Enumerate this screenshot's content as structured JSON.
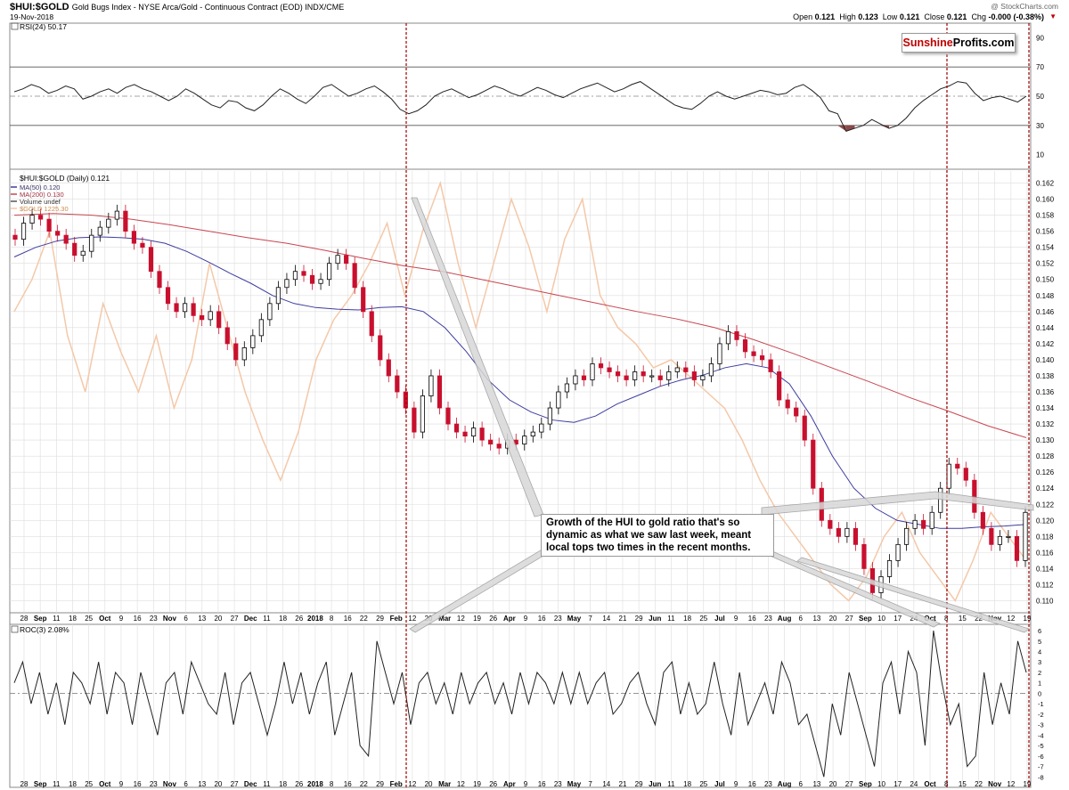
{
  "header": {
    "symbol": "$HUI:$GOLD",
    "description": "Gold Bugs Index - NYSE Arca/Gold - Continuous Contract (EOD) INDX/CME",
    "date": "19-Nov-2018",
    "source": "@ StockCharts.com",
    "quote": {
      "open_label": "Open",
      "open": "0.121",
      "high_label": "High",
      "high": "0.123",
      "low_label": "Low",
      "low": "0.121",
      "close_label": "Close",
      "close": "0.121",
      "chg_label": "Chg",
      "chg": "-0.000 (-0.38%)"
    }
  },
  "logo": {
    "part1": "Sunshine",
    "part2": "Profits.com"
  },
  "annotation": {
    "text": "Growth of the HUI to gold ratio that's so dynamic as what we saw last week, meant local tops two times in the recent months."
  },
  "colors": {
    "up": "#000000",
    "down": "#c8102e",
    "ma50": "#3c3ca0",
    "ma200": "#c84650",
    "gold": "#f4c8a8",
    "grid": "#dddddd",
    "marker": "#a00000",
    "rsi_fill": "#8b4a4a"
  },
  "chart_data": [
    {
      "type": "line",
      "panel": "RSI",
      "title": "RSI(24) 50.17",
      "yticks": [
        10,
        30,
        50,
        70,
        90
      ],
      "ylim": [
        0,
        100
      ],
      "ref_lines": [
        30,
        50,
        70
      ],
      "points": [
        53,
        55,
        58,
        56,
        52,
        54,
        57,
        55,
        48,
        50,
        53,
        55,
        52,
        56,
        58,
        55,
        53,
        50,
        47,
        50,
        55,
        52,
        48,
        44,
        42,
        47,
        46,
        42,
        40,
        44,
        50,
        55,
        52,
        48,
        45,
        50,
        56,
        58,
        54,
        50,
        52,
        55,
        57,
        53,
        48,
        41,
        38,
        40,
        44,
        50,
        53,
        55,
        52,
        49,
        51,
        54,
        57,
        55,
        52,
        50,
        53,
        56,
        54,
        51,
        49,
        52,
        55,
        57,
        59,
        56,
        53,
        55,
        58,
        60,
        56,
        52,
        48,
        44,
        42,
        41,
        45,
        50,
        53,
        50,
        48,
        50,
        52,
        54,
        53,
        51,
        52,
        56,
        58,
        54,
        49,
        40,
        38,
        26,
        28,
        30,
        34,
        31,
        28,
        30,
        35,
        42,
        47,
        51,
        55,
        57,
        60,
        59,
        52,
        47,
        49,
        50,
        48,
        46,
        50
      ]
    },
    {
      "type": "candlestick",
      "panel": "Price",
      "title": "$HUI:$GOLD (Daily) 0.121",
      "legend": [
        "MA(50) 0.120",
        "MA(200) 0.130",
        "Volume undef",
        "$GOLD 1225.30"
      ],
      "yticks": [
        0.11,
        0.112,
        0.114,
        0.116,
        0.118,
        0.12,
        0.122,
        0.124,
        0.126,
        0.128,
        0.13,
        0.132,
        0.134,
        0.136,
        0.138,
        0.14,
        0.142,
        0.144,
        0.146,
        0.148,
        0.15,
        0.152,
        0.154,
        0.156,
        0.158,
        0.16,
        0.162
      ],
      "ylim": [
        0.1085,
        0.1635
      ],
      "close": [
        0.155,
        0.157,
        0.158,
        0.1575,
        0.156,
        0.1555,
        0.1545,
        0.153,
        0.1535,
        0.1555,
        0.1565,
        0.1575,
        0.1585,
        0.156,
        0.1545,
        0.154,
        0.151,
        0.149,
        0.147,
        0.146,
        0.147,
        0.1455,
        0.145,
        0.146,
        0.144,
        0.142,
        0.14,
        0.1415,
        0.143,
        0.145,
        0.147,
        0.149,
        0.15,
        0.151,
        0.1505,
        0.1495,
        0.15,
        0.152,
        0.153,
        0.152,
        0.149,
        0.146,
        0.143,
        0.14,
        0.138,
        0.136,
        0.134,
        0.131,
        0.1355,
        0.138,
        0.134,
        0.132,
        0.131,
        0.1305,
        0.1315,
        0.13,
        0.1295,
        0.129,
        0.13,
        0.1295,
        0.1305,
        0.131,
        0.132,
        0.134,
        0.136,
        0.137,
        0.138,
        0.1375,
        0.1395,
        0.139,
        0.1385,
        0.138,
        0.1375,
        0.1385,
        0.138,
        0.138,
        0.1375,
        0.1385,
        0.139,
        0.1385,
        0.1375,
        0.138,
        0.1395,
        0.142,
        0.1435,
        0.1425,
        0.141,
        0.1405,
        0.14,
        0.1385,
        0.135,
        0.134,
        0.133,
        0.13,
        0.124,
        0.12,
        0.119,
        0.118,
        0.119,
        0.117,
        0.114,
        0.111,
        0.113,
        0.115,
        0.117,
        0.119,
        0.12,
        0.119,
        0.121,
        0.124,
        0.127,
        0.1265,
        0.125,
        0.121,
        0.119,
        0.117,
        0.118,
        0.118,
        0.115,
        0.121
      ]
    },
    {
      "type": "line",
      "panel": "Price overlay",
      "name": "MA(50)",
      "points": [
        0.1528,
        0.154,
        0.1548,
        0.1552,
        0.1553,
        0.1552,
        0.155,
        0.1545,
        0.1535,
        0.1522,
        0.1508,
        0.1495,
        0.148,
        0.147,
        0.1465,
        0.1463,
        0.1462,
        0.1465,
        0.1466,
        0.146,
        0.144,
        0.141,
        0.1375,
        0.135,
        0.1335,
        0.1325,
        0.1322,
        0.133,
        0.1345,
        0.1356,
        0.1367,
        0.1375,
        0.1381,
        0.139,
        0.1395,
        0.139,
        0.137,
        0.133,
        0.128,
        0.124,
        0.1215,
        0.12,
        0.1195,
        0.119,
        0.119,
        0.1192,
        0.1193,
        0.1195
      ]
    },
    {
      "type": "line",
      "panel": "Price overlay",
      "name": "MA(200)",
      "points": [
        0.158,
        0.1582,
        0.158,
        0.1575,
        0.1568,
        0.156,
        0.1552,
        0.1545,
        0.1536,
        0.1526,
        0.1517,
        0.151,
        0.15,
        0.149,
        0.148,
        0.147,
        0.146,
        0.1451,
        0.144,
        0.1425,
        0.1408,
        0.139,
        0.1372,
        0.1353,
        0.1336,
        0.1318,
        0.1303
      ]
    },
    {
      "type": "line",
      "panel": "Price overlay",
      "name": "$GOLD",
      "note": "overlay on independent scale",
      "points": [
        0.146,
        0.15,
        0.156,
        0.143,
        0.136,
        0.147,
        0.141,
        0.136,
        0.143,
        0.134,
        0.14,
        0.152,
        0.144,
        0.136,
        0.13,
        0.125,
        0.131,
        0.14,
        0.145,
        0.148,
        0.152,
        0.157,
        0.148,
        0.156,
        0.162,
        0.152,
        0.144,
        0.152,
        0.16,
        0.154,
        0.146,
        0.155,
        0.16,
        0.148,
        0.144,
        0.142,
        0.139,
        0.14,
        0.138,
        0.136,
        0.134,
        0.13,
        0.125,
        0.121,
        0.118,
        0.115,
        0.112,
        0.11,
        0.113,
        0.118,
        0.121,
        0.116,
        0.113,
        0.11,
        0.115,
        0.121,
        0.118,
        0.115
      ]
    },
    {
      "type": "line",
      "panel": "ROC",
      "title": "ROC(3) 2.08%",
      "yticks": [
        6,
        5,
        4,
        3,
        2,
        1,
        0,
        -1,
        -2,
        -3,
        -4,
        -5,
        -6,
        -7,
        -8
      ],
      "ylim": [
        -9,
        6.6
      ],
      "ref_lines": [
        0
      ],
      "points": [
        1,
        3,
        -1,
        2,
        -2,
        1,
        -3,
        2,
        1,
        -1,
        3,
        -2,
        2,
        1,
        -3,
        2,
        -1,
        -4,
        1,
        2,
        -2,
        3,
        1,
        -1,
        -2,
        2,
        -3,
        1,
        2,
        -1,
        -4,
        -1,
        3,
        -1,
        2,
        -2,
        1,
        3,
        -4,
        -1,
        2,
        -5,
        -6,
        5,
        2,
        -1,
        2,
        -3,
        1,
        2,
        -1,
        1,
        -2,
        2,
        -1,
        1,
        2,
        -1,
        1,
        -2,
        2,
        -1,
        2,
        1,
        -1,
        2,
        -1,
        2,
        -1,
        1,
        2,
        -2,
        -1,
        1,
        2,
        -1,
        -3,
        2,
        3,
        -2,
        1,
        -2,
        -1,
        3,
        -1,
        -4,
        2,
        -3,
        -1,
        1,
        -2,
        3,
        1,
        -3,
        -2,
        -5,
        -8,
        -1,
        -4,
        2,
        -1,
        -4,
        -7,
        1,
        3,
        -2,
        4,
        2,
        -5,
        6,
        1,
        -3,
        -1,
        -7,
        -6,
        2,
        -3,
        1,
        -2,
        5,
        2
      ]
    },
    {
      "type": "axis",
      "panel": "shared x-axis",
      "tick_labels": [
        "28",
        "Sep",
        "11",
        "18",
        "25",
        "Oct",
        "9",
        "16",
        "23",
        "Nov",
        "6",
        "13",
        "20",
        "27",
        "Dec",
        "11",
        "18",
        "26",
        "2018",
        "8",
        "16",
        "22",
        "29",
        "Feb",
        "12",
        "20",
        "Mar",
        "12",
        "19",
        "26",
        "Apr",
        "9",
        "16",
        "23",
        "May",
        "7",
        "14",
        "21",
        "29",
        "Jun",
        "11",
        "18",
        "25",
        "Jul",
        "9",
        "16",
        "23",
        "Aug",
        "6",
        "13",
        "20",
        "27",
        "Sep",
        "10",
        "17",
        "24",
        "Oct",
        "8",
        "15",
        "22",
        "Nov",
        "12",
        "19"
      ],
      "bold_labels": [
        "Sep",
        "Oct",
        "Nov",
        "Dec",
        "2018",
        "Feb",
        "Mar",
        "Apr",
        "May",
        "Jun",
        "Jul",
        "Aug",
        "Sep",
        "Oct",
        "Nov"
      ],
      "markers": [
        "12 Feb",
        "15 Oct",
        "19 Nov"
      ]
    }
  ]
}
